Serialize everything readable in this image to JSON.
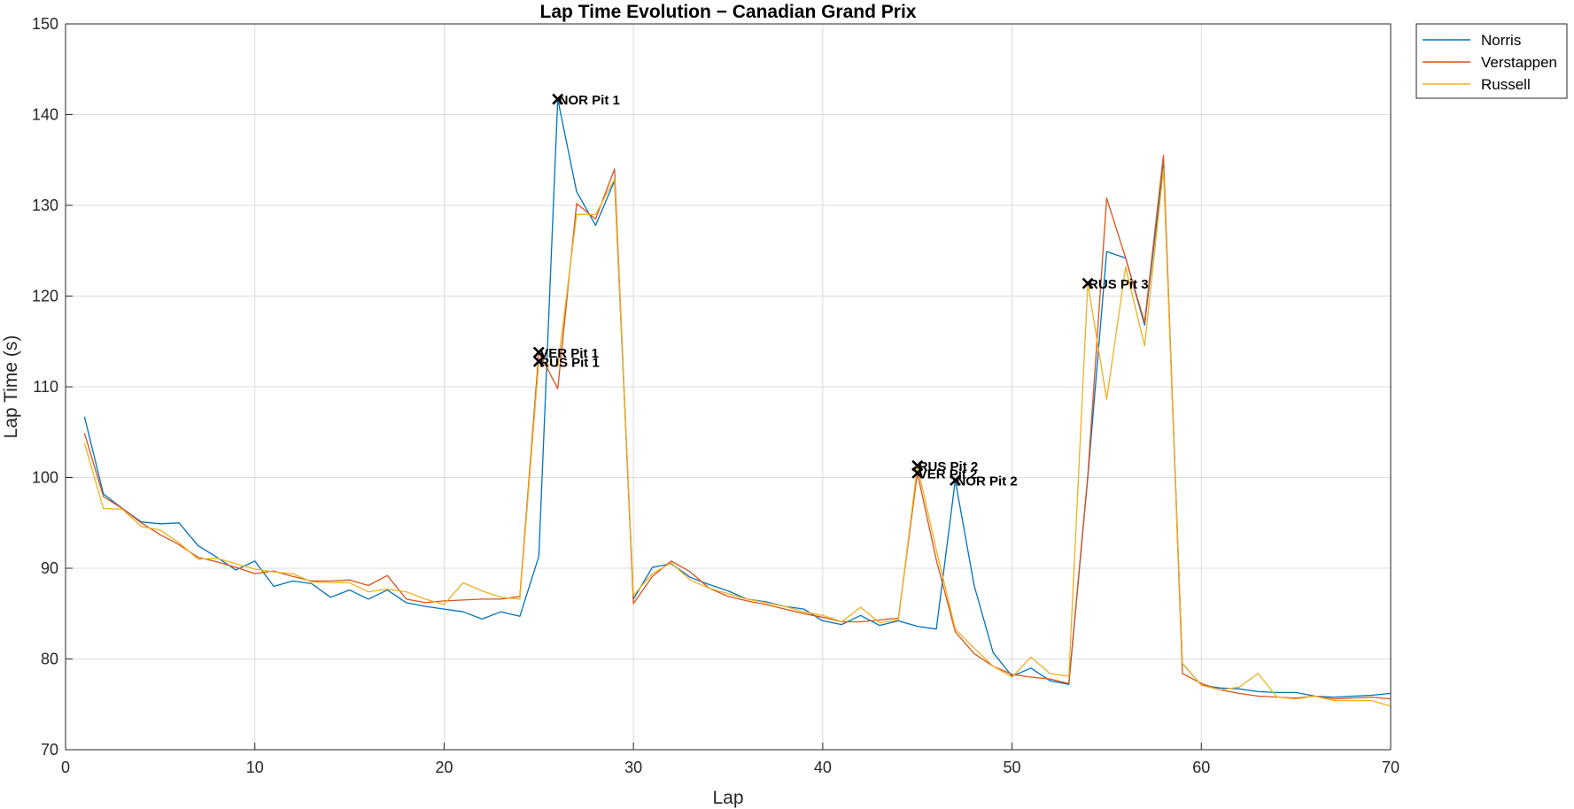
{
  "chart_data": {
    "type": "line",
    "title": "Lap Time Evolution − Canadian Grand Prix",
    "xlabel": "Lap",
    "ylabel": "Lap Time (s)",
    "xlim": [
      0,
      70
    ],
    "ylim": [
      70,
      150
    ],
    "xticks": [
      "0",
      "10",
      "20",
      "30",
      "40",
      "50",
      "60",
      "70"
    ],
    "yticks": [
      "70",
      "80",
      "90",
      "100",
      "110",
      "120",
      "130",
      "140",
      "150"
    ],
    "grid": true,
    "legend_position": "outside top-right",
    "series": [
      {
        "name": "Norris",
        "color": "#0072BD",
        "x": [
          1,
          2,
          3,
          4,
          5,
          6,
          7,
          8,
          9,
          10,
          11,
          12,
          13,
          14,
          15,
          16,
          17,
          18,
          19,
          20,
          21,
          22,
          23,
          24,
          25,
          26,
          27,
          28,
          29,
          30,
          31,
          32,
          33,
          34,
          35,
          36,
          37,
          38,
          39,
          40,
          41,
          42,
          43,
          44,
          45,
          46,
          47,
          48,
          49,
          50,
          51,
          52,
          53,
          54,
          55,
          56,
          57,
          58,
          59,
          60,
          61,
          62,
          63,
          64,
          65,
          66,
          67,
          68,
          69,
          70
        ],
        "y": [
          106.7,
          98.2,
          96.6,
          95.1,
          94.9,
          95.0,
          92.5,
          91.2,
          89.8,
          90.8,
          88.0,
          88.6,
          88.3,
          86.8,
          87.6,
          86.6,
          87.6,
          86.2,
          85.8,
          85.5,
          85.2,
          84.4,
          85.2,
          84.7,
          91.3,
          141.7,
          131.5,
          127.8,
          132.7,
          86.6,
          90.1,
          90.5,
          89.0,
          88.2,
          87.5,
          86.6,
          86.3,
          85.8,
          85.5,
          84.2,
          83.8,
          84.8,
          83.7,
          84.2,
          83.6,
          83.3,
          99.7,
          88.1,
          80.7,
          78.1,
          79.0,
          77.6,
          77.2,
          100.0,
          124.9,
          124.2,
          116.8,
          134.5,
          79.5,
          77.1,
          76.8,
          76.7,
          76.4,
          76.3,
          76.3,
          75.9,
          75.8,
          75.9,
          76.0,
          76.2
        ]
      },
      {
        "name": "Verstappen",
        "color": "#D95319",
        "x": [
          1,
          2,
          3,
          4,
          5,
          6,
          7,
          8,
          9,
          10,
          11,
          12,
          13,
          14,
          15,
          16,
          17,
          18,
          19,
          20,
          21,
          22,
          23,
          24,
          25,
          26,
          27,
          28,
          29,
          30,
          31,
          32,
          33,
          34,
          35,
          36,
          37,
          38,
          39,
          40,
          41,
          42,
          43,
          44,
          45,
          46,
          47,
          48,
          49,
          50,
          51,
          52,
          53,
          54,
          55,
          56,
          57,
          58,
          59,
          60,
          61,
          62,
          63,
          64,
          65,
          66,
          67,
          68,
          69,
          70
        ],
        "y": [
          104.9,
          97.9,
          96.6,
          95.0,
          93.7,
          92.6,
          91.2,
          90.7,
          90.1,
          89.4,
          89.7,
          89.1,
          88.6,
          88.6,
          88.7,
          88.1,
          89.2,
          86.6,
          86.2,
          86.4,
          86.5,
          86.6,
          86.6,
          86.9,
          113.8,
          109.8,
          130.2,
          128.5,
          134.0,
          86.1,
          89.1,
          90.8,
          89.6,
          87.8,
          86.9,
          86.4,
          86.0,
          85.5,
          85.0,
          84.6,
          84.1,
          84.1,
          84.3,
          84.5,
          100.5,
          90.9,
          83.0,
          80.6,
          79.2,
          78.3,
          78.0,
          77.8,
          77.3,
          100.2,
          130.8,
          124.2,
          117.1,
          135.5,
          78.4,
          77.3,
          76.6,
          76.2,
          75.9,
          75.8,
          75.7,
          75.9,
          75.6,
          75.7,
          75.8,
          75.6
        ]
      },
      {
        "name": "Russell",
        "color": "#EDB120",
        "x": [
          1,
          2,
          3,
          4,
          5,
          6,
          7,
          8,
          9,
          10,
          11,
          12,
          13,
          14,
          15,
          16,
          17,
          18,
          19,
          20,
          21,
          22,
          23,
          24,
          25,
          26,
          27,
          28,
          29,
          30,
          31,
          32,
          33,
          34,
          35,
          36,
          37,
          38,
          39,
          40,
          41,
          42,
          43,
          44,
          45,
          46,
          47,
          48,
          49,
          50,
          51,
          52,
          53,
          54,
          55,
          56,
          57,
          58,
          59,
          60,
          61,
          62,
          63,
          64,
          65,
          66,
          67,
          68,
          69,
          70
        ],
        "y": [
          103.8,
          96.6,
          96.5,
          94.6,
          94.2,
          92.8,
          91.0,
          91.1,
          90.5,
          89.9,
          89.6,
          89.4,
          88.5,
          88.4,
          88.4,
          87.4,
          87.7,
          87.4,
          86.6,
          86.0,
          88.4,
          87.5,
          86.8,
          86.6,
          112.8,
          112.2,
          129.0,
          129.0,
          132.9,
          87.0,
          89.4,
          90.6,
          88.7,
          87.8,
          87.2,
          86.6,
          86.2,
          85.8,
          85.2,
          84.8,
          84.1,
          85.7,
          84.0,
          84.3,
          101.3,
          92.0,
          83.3,
          81.2,
          79.2,
          78.0,
          80.2,
          78.4,
          78.1,
          121.4,
          108.6,
          123.2,
          114.5,
          134.0,
          79.5,
          77.1,
          76.6,
          76.9,
          78.4,
          75.8,
          75.6,
          75.9,
          75.4,
          75.4,
          75.4,
          74.8
        ]
      }
    ],
    "pit_stops": [
      {
        "label": "NOR Pit 1",
        "x": 26,
        "y": 141.7
      },
      {
        "label": "VER Pit 1",
        "x": 25,
        "y": 113.8
      },
      {
        "label": "RUS Pit 1",
        "x": 25,
        "y": 112.8
      },
      {
        "label": "RUS Pit 2",
        "x": 45,
        "y": 101.3
      },
      {
        "label": "VER Pit 2",
        "x": 45,
        "y": 100.5
      },
      {
        "label": "NOR Pit 2",
        "x": 47,
        "y": 99.7
      },
      {
        "label": "RUS Pit 3",
        "x": 54,
        "y": 121.4
      }
    ]
  }
}
